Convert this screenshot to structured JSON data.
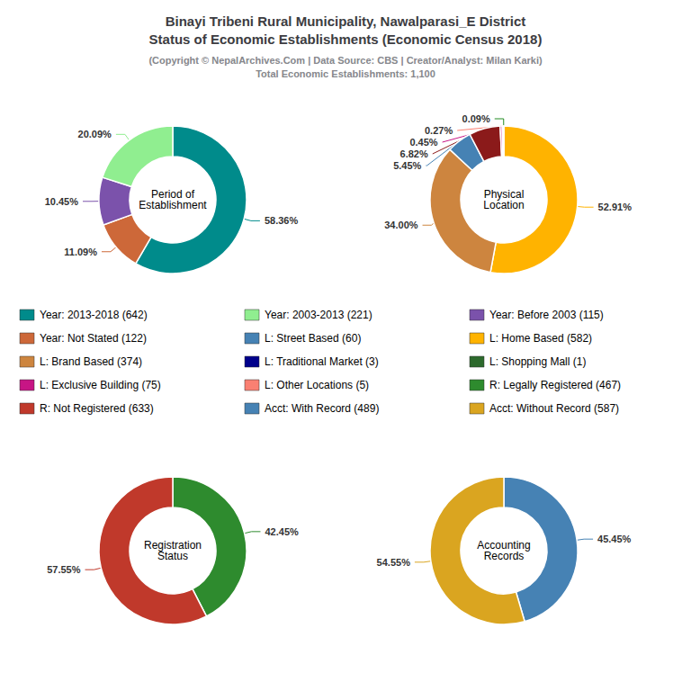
{
  "title": "Binayi Tribeni Rural Municipality, Nawalparasi_E District\nStatus of Economic Establishments (Economic Census 2018)",
  "subtitle": "(Copyright © NepalArchives.Com | Data Source: CBS | Creator/Analyst: Milan Karki)\nTotal Economic Establishments: 1,100",
  "chart_data": [
    {
      "type": "pie",
      "title": "Period of\nEstablishment",
      "values": [
        58.36,
        11.09,
        10.45,
        20.09
      ],
      "value_labels": [
        "58.36%",
        "11.09%",
        "10.45%",
        "20.09%"
      ],
      "colors": [
        "#008B8B",
        "#CD6839",
        "#7B52AB",
        "#90EE90"
      ],
      "data_labels": true
    },
    {
      "type": "pie",
      "title": "Physical\nLocation",
      "values": [
        52.91,
        34.0,
        5.45,
        6.82,
        0.45,
        0.27,
        0.09
      ],
      "value_labels": [
        "52.91%",
        "34.00%",
        "5.45%",
        "6.82%",
        "0.45%",
        "0.27%",
        "0.09%"
      ],
      "colors": [
        "#FFB300",
        "#CD853F",
        "#4682B4",
        "#8B1A1A",
        "#C71585",
        "#FA8072",
        "#228B22"
      ],
      "data_labels": true
    },
    {
      "type": "pie",
      "title": "Registration\nStatus",
      "values": [
        42.45,
        57.55
      ],
      "value_labels": [
        "42.45%",
        "57.55%"
      ],
      "colors": [
        "#2E8B2E",
        "#C0392B"
      ],
      "data_labels": true
    },
    {
      "type": "pie",
      "title": "Accounting\nRecords",
      "values": [
        45.45,
        54.55
      ],
      "value_labels": [
        "45.45%",
        "54.55%"
      ],
      "colors": [
        "#4682B4",
        "#DAA520"
      ],
      "data_labels": true
    }
  ],
  "legend_entries": [
    {
      "name": "Year: 2013-2018 (642)",
      "color": "#008B8B"
    },
    {
      "name": "Year: 2003-2013 (221)",
      "color": "#90EE90"
    },
    {
      "name": "Year: Before 2003 (115)",
      "color": "#7B52AB"
    },
    {
      "name": "Year: Not Stated (122)",
      "color": "#CD6839"
    },
    {
      "name": "L: Street Based (60)",
      "color": "#4682B4"
    },
    {
      "name": "L: Home Based (582)",
      "color": "#FFB300"
    },
    {
      "name": "L: Brand Based (374)",
      "color": "#CD853F"
    },
    {
      "name": "L: Traditional Market (3)",
      "color": "#00008B"
    },
    {
      "name": "L: Shopping Mall (1)",
      "color": "#2D6A2D"
    },
    {
      "name": "L: Exclusive Building (75)",
      "color": "#C71585"
    },
    {
      "name": "L: Other Locations (5)",
      "color": "#FA8072"
    },
    {
      "name": "R: Legally Registered (467)",
      "color": "#2E8B2E"
    },
    {
      "name": "R: Not Registered (633)",
      "color": "#C0392B"
    },
    {
      "name": "Acct: With Record (489)",
      "color": "#4682B4"
    },
    {
      "name": "Acct: Without Record (587)",
      "color": "#DAA520"
    }
  ]
}
